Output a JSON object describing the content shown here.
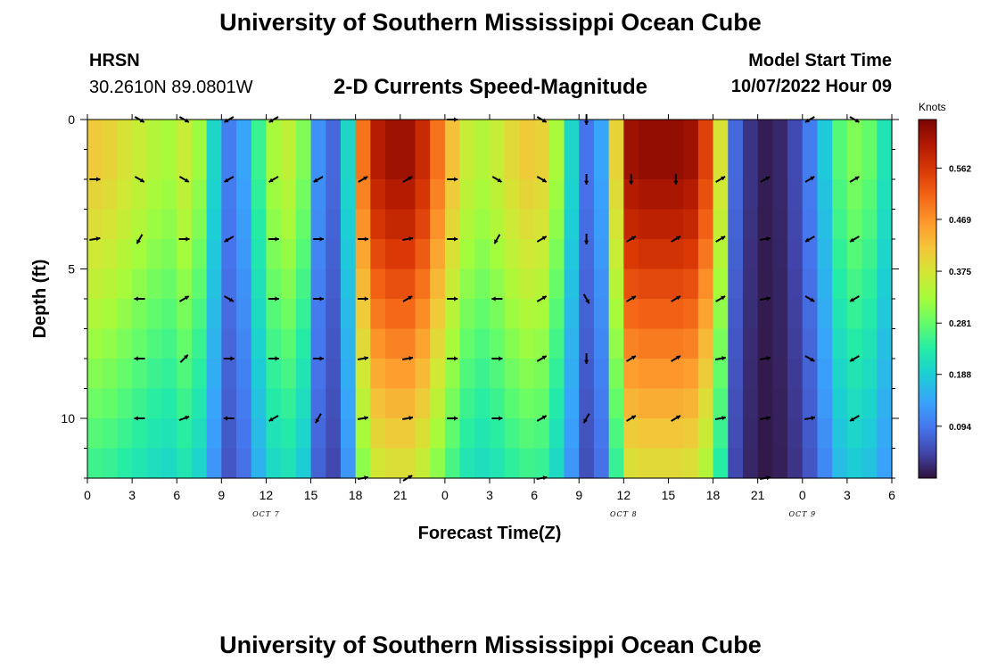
{
  "header": {
    "title": "University of Southern Mississippi Ocean Cube",
    "station": "HRSN",
    "coords": "30.2610N  89.0801W",
    "subtitle": "2-D Currents Speed-Magnitude",
    "model_start_label": "Model Start Time",
    "model_start_value": "10/07/2022 Hour 09"
  },
  "footer": {
    "title": "University of Southern Mississippi Ocean Cube"
  },
  "chart_data": {
    "type": "heatmap",
    "title": "2-D Currents Speed-Magnitude",
    "xlabel": "Forecast Time(Z)",
    "ylabel": "Depth (ft)",
    "units": "Knots",
    "x_ticks": [
      "0",
      "3",
      "6",
      "9",
      "12",
      "15",
      "18",
      "21",
      "0",
      "3",
      "6",
      "9",
      "12",
      "15",
      "18",
      "21",
      "0",
      "3",
      "6"
    ],
    "day_labels": [
      {
        "label": "OCT 7",
        "tick": 12
      },
      {
        "label": "OCT 8",
        "tick": 12
      },
      {
        "label": "OCT 9",
        "tick": 0
      }
    ],
    "x_range_hours": [
      0,
      54
    ],
    "y_ticks": [
      "0",
      "5",
      "10"
    ],
    "y_range_ft": [
      0,
      12
    ],
    "colorbar_ticks": [
      "0.094",
      "0.188",
      "0.281",
      "0.375",
      "0.469",
      "0.562"
    ],
    "colorbar_range": [
      0,
      0.65
    ],
    "column_step_hours": 1,
    "row_step_ft": 1,
    "surface_profile_knots": [
      0.41,
      0.4,
      0.38,
      0.36,
      0.34,
      0.33,
      0.36,
      0.32,
      0.2,
      0.1,
      0.14,
      0.25,
      0.33,
      0.35,
      0.3,
      0.12,
      0.08,
      0.2,
      0.5,
      0.6,
      0.62,
      0.62,
      0.58,
      0.5,
      0.42,
      0.36,
      0.34,
      0.36,
      0.39,
      0.41,
      0.4,
      0.33,
      0.2,
      0.09,
      0.14,
      0.4,
      0.62,
      0.63,
      0.63,
      0.63,
      0.62,
      0.55,
      0.38,
      0.08,
      0.03,
      0.01,
      0.02,
      0.05,
      0.1,
      0.18,
      0.27,
      0.3,
      0.28,
      0.22,
      0.14
    ],
    "depth_factor_ft": [
      1.0,
      1.0,
      0.97,
      0.94,
      0.9,
      0.86,
      0.82,
      0.78,
      0.74,
      0.7,
      0.66,
      0.62,
      0.58
    ],
    "vectors": {
      "hours": [
        0,
        3,
        6,
        9,
        12,
        15,
        18,
        21,
        24,
        27,
        30,
        33,
        36,
        39,
        42,
        45,
        48,
        51
      ],
      "depths_ft": [
        0,
        2,
        4,
        6,
        8,
        10,
        12
      ],
      "angles_deg": [
        [
          30,
          30,
          30,
          150,
          150,
          150,
          30,
          30,
          0,
          0,
          30,
          90,
          90,
          90,
          120,
          150,
          150,
          30
        ],
        [
          0,
          30,
          30,
          150,
          150,
          150,
          -30,
          -30,
          0,
          30,
          30,
          90,
          90,
          90,
          -30,
          -30,
          -30,
          -30
        ],
        [
          -10,
          120,
          0,
          150,
          0,
          0,
          0,
          -10,
          0,
          120,
          -30,
          90,
          -30,
          -30,
          -30,
          -10,
          150,
          150
        ],
        [
          180,
          180,
          -30,
          30,
          0,
          0,
          0,
          -30,
          0,
          180,
          -30,
          60,
          -30,
          -30,
          -30,
          -10,
          30,
          150
        ],
        [
          180,
          180,
          -45,
          0,
          0,
          0,
          -10,
          -10,
          0,
          0,
          -30,
          90,
          -30,
          -30,
          -10,
          -10,
          30,
          150
        ],
        [
          180,
          180,
          -20,
          180,
          150,
          120,
          -10,
          -10,
          0,
          0,
          -30,
          120,
          -30,
          -30,
          -10,
          -10,
          -10,
          150
        ],
        [
          0,
          0,
          0,
          0,
          0,
          0,
          -10,
          -30,
          0,
          0,
          -10,
          0,
          0,
          0,
          0,
          -10,
          0,
          0
        ]
      ],
      "visible": [
        [
          0,
          1,
          1,
          1,
          1,
          0,
          0,
          0,
          1,
          0,
          1,
          1,
          0,
          0,
          0,
          0,
          1,
          1
        ],
        [
          1,
          1,
          1,
          1,
          1,
          1,
          1,
          1,
          1,
          1,
          1,
          1,
          1,
          1,
          1,
          1,
          1,
          1
        ],
        [
          1,
          1,
          1,
          1,
          1,
          1,
          1,
          1,
          1,
          1,
          1,
          1,
          1,
          1,
          1,
          1,
          1,
          1
        ],
        [
          0,
          1,
          1,
          1,
          1,
          1,
          1,
          1,
          1,
          1,
          1,
          1,
          1,
          1,
          1,
          1,
          1,
          1
        ],
        [
          0,
          1,
          1,
          1,
          1,
          1,
          1,
          1,
          1,
          1,
          1,
          1,
          1,
          1,
          1,
          1,
          1,
          1
        ],
        [
          0,
          1,
          1,
          1,
          1,
          1,
          1,
          1,
          1,
          1,
          1,
          1,
          1,
          1,
          1,
          1,
          1,
          1
        ],
        [
          0,
          0,
          0,
          0,
          0,
          0,
          1,
          1,
          0,
          0,
          1,
          0,
          0,
          0,
          0,
          1,
          0,
          0
        ]
      ]
    }
  }
}
